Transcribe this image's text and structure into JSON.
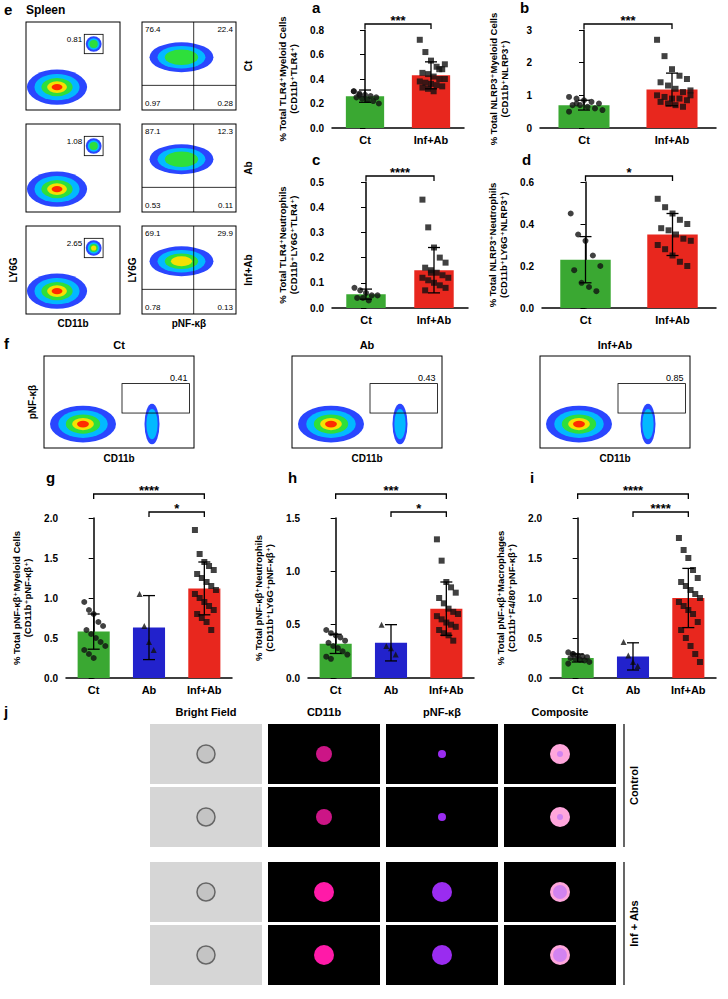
{
  "chart_data": [
    {
      "panel": "a",
      "type": "bar",
      "ylabel": [
        "% Total TLR4⁺Myeloid Cells",
        "(CD11b⁺TLR4⁺)"
      ],
      "categories": [
        "Ct",
        "Inf+Ab"
      ],
      "values": [
        0.26,
        0.43
      ],
      "error": [
        0.05,
        0.11
      ],
      "colors": [
        "#3aa832",
        "#e8271e"
      ],
      "marker": [
        "circle",
        "square"
      ],
      "points": [
        [
          0.3,
          0.28,
          0.27,
          0.26,
          0.25,
          0.25,
          0.24,
          0.23,
          0.22,
          0.2,
          0.3,
          0.27
        ],
        [
          0.72,
          0.62,
          0.55,
          0.5,
          0.48,
          0.45,
          0.44,
          0.42,
          0.4,
          0.4,
          0.38,
          0.37,
          0.36,
          0.35,
          0.34,
          0.33,
          0.32,
          0.3,
          0.48,
          0.52
        ]
      ],
      "ylim": [
        0,
        0.8
      ],
      "yticks": [
        {
          "value": 0,
          "label": "0.0"
        },
        {
          "value": 0.2,
          "label": "0.2"
        },
        {
          "value": 0.4,
          "label": "0.4"
        },
        {
          "value": 0.6,
          "label": "0.6"
        },
        {
          "value": 0.8,
          "label": "0.8"
        }
      ],
      "significance": [
        {
          "groups": [
            "Ct",
            "Inf+Ab"
          ],
          "label": "***"
        }
      ],
      "grid": false
    },
    {
      "panel": "b",
      "type": "bar",
      "ylabel": [
        "% Total NLRP3⁺Myeloid Cells",
        "(CD11b⁺NLRP3⁺)"
      ],
      "categories": [
        "Ct",
        "Inf+Ab"
      ],
      "values": [
        0.7,
        1.18
      ],
      "error": [
        0.15,
        0.5
      ],
      "colors": [
        "#3aa832",
        "#e8271e"
      ],
      "marker": [
        "circle",
        "square"
      ],
      "points": [
        [
          0.95,
          0.9,
          0.85,
          0.8,
          0.75,
          0.7,
          0.7,
          0.65,
          0.6,
          0.55,
          0.5,
          0.75
        ],
        [
          2.7,
          2.2,
          1.8,
          1.6,
          1.5,
          1.4,
          1.3,
          1.2,
          1.1,
          1.0,
          1.0,
          0.95,
          0.9,
          0.9,
          0.85,
          0.8,
          0.75,
          0.7,
          0.65,
          1.15
        ]
      ],
      "ylim": [
        0,
        3
      ],
      "yticks": [
        0,
        1,
        2,
        3
      ],
      "significance": [
        {
          "groups": [
            "Ct",
            "Inf+Ab"
          ],
          "label": "***"
        }
      ],
      "grid": false
    },
    {
      "panel": "c",
      "type": "bar",
      "ylabel": [
        "% Total TLR4⁺Neutrophils",
        "(CD11b⁺LY6G⁺TLR4⁺)"
      ],
      "categories": [
        "Ct",
        "Inf+Ab"
      ],
      "values": [
        0.055,
        0.15
      ],
      "error": [
        0.02,
        0.09
      ],
      "colors": [
        "#3aa832",
        "#e8271e"
      ],
      "marker": [
        "circle",
        "square"
      ],
      "points": [
        [
          0.08,
          0.07,
          0.06,
          0.05,
          0.05,
          0.04,
          0.04,
          0.03
        ],
        [
          0.43,
          0.32,
          0.24,
          0.2,
          0.18,
          0.16,
          0.15,
          0.14,
          0.13,
          0.12,
          0.12,
          0.11,
          0.1,
          0.09,
          0.08,
          0.07,
          0.14
        ]
      ],
      "ylim": [
        0,
        0.5
      ],
      "yticks": [
        {
          "value": 0,
          "label": "0.0"
        },
        {
          "value": 0.1,
          "label": "0.1"
        },
        {
          "value": 0.2,
          "label": "0.2"
        },
        {
          "value": 0.3,
          "label": "0.3"
        },
        {
          "value": 0.4,
          "label": "0.4"
        },
        {
          "value": 0.5,
          "label": "0.5"
        }
      ],
      "significance": [
        {
          "groups": [
            "Ct",
            "Inf+Ab"
          ],
          "label": "****"
        }
      ],
      "grid": false
    },
    {
      "panel": "d",
      "type": "bar",
      "ylabel": [
        "% Total NLRP3⁺Neutrophils",
        "(CD11b⁺LY6G⁺NLRP3⁺)"
      ],
      "categories": [
        "Ct",
        "Inf+Ab"
      ],
      "values": [
        0.23,
        0.35
      ],
      "error": [
        0.11,
        0.1
      ],
      "colors": [
        "#3aa832",
        "#e8271e"
      ],
      "marker": [
        "circle",
        "square"
      ],
      "points": [
        [
          0.45,
          0.35,
          0.32,
          0.25,
          0.2,
          0.18,
          0.12,
          0.1,
          0.08
        ],
        [
          0.52,
          0.48,
          0.45,
          0.42,
          0.4,
          0.38,
          0.37,
          0.35,
          0.33,
          0.32,
          0.3,
          0.28,
          0.25,
          0.22,
          0.2
        ]
      ],
      "ylim": [
        0,
        0.6
      ],
      "yticks": [
        {
          "value": 0,
          "label": "0.0"
        },
        {
          "value": 0.2,
          "label": "0.2"
        },
        {
          "value": 0.4,
          "label": "0.4"
        },
        {
          "value": 0.6,
          "label": "0.6"
        }
      ],
      "significance": [
        {
          "groups": [
            "Ct",
            "Inf+Ab"
          ],
          "label": "*"
        }
      ],
      "grid": false
    },
    {
      "panel": "g",
      "type": "bar",
      "ylabel": [
        "% Total pNF-κβ⁺Myeloid Cells",
        "(CD11b⁺pNF-κβ⁺)"
      ],
      "categories": [
        "Ct",
        "Ab",
        "Inf+Ab"
      ],
      "values": [
        0.58,
        0.63,
        1.12
      ],
      "error": [
        0.22,
        0.4,
        0.33
      ],
      "colors": [
        "#3aa832",
        "#2222cc",
        "#e8271e"
      ],
      "marker": [
        "circle",
        "triangle",
        "square"
      ],
      "points": [
        [
          0.95,
          0.85,
          0.8,
          0.7,
          0.65,
          0.6,
          0.55,
          0.5,
          0.45,
          0.4,
          0.35,
          0.3,
          0.25
        ],
        [
          1.05,
          0.65,
          0.45,
          0.35
        ],
        [
          1.85,
          1.55,
          1.45,
          1.4,
          1.35,
          1.3,
          1.25,
          1.2,
          1.15,
          1.1,
          1.05,
          1.0,
          0.95,
          0.9,
          0.85,
          0.8,
          0.75,
          0.7,
          0.6
        ]
      ],
      "ylim": [
        0,
        2
      ],
      "yticks": [
        {
          "value": 0,
          "label": "0.0"
        },
        {
          "value": 0.5,
          "label": "0.5"
        },
        {
          "value": 1,
          "label": "1.0"
        },
        {
          "value": 1.5,
          "label": "1.5"
        },
        {
          "value": 2,
          "label": "2.0"
        }
      ],
      "significance": [
        {
          "groups": [
            "Ct",
            "Inf+Ab"
          ],
          "label": "****"
        },
        {
          "groups": [
            "Ab",
            "Inf+Ab"
          ],
          "label": "*"
        }
      ],
      "grid": false
    },
    {
      "panel": "h",
      "type": "bar",
      "ylabel": [
        "% Total pNF-κβ⁺Neutrophils",
        "(CD11b⁺LY6G⁺pNF-κβ⁺)"
      ],
      "categories": [
        "Ct",
        "Ab",
        "Inf+Ab"
      ],
      "values": [
        0.32,
        0.33,
        0.65
      ],
      "error": [
        0.09,
        0.17,
        0.25
      ],
      "colors": [
        "#3aa832",
        "#2222cc",
        "#e8271e"
      ],
      "marker": [
        "circle",
        "triangle",
        "square"
      ],
      "points": [
        [
          0.45,
          0.42,
          0.4,
          0.38,
          0.35,
          0.33,
          0.3,
          0.28,
          0.25,
          0.22,
          0.2,
          0.18
        ],
        [
          0.5,
          0.3,
          0.28,
          0.22
        ],
        [
          1.3,
          1.1,
          0.9,
          0.85,
          0.8,
          0.75,
          0.7,
          0.65,
          0.62,
          0.6,
          0.58,
          0.55,
          0.52,
          0.5,
          0.48,
          0.45,
          0.42,
          0.4,
          0.35
        ]
      ],
      "ylim": [
        0,
        1.5
      ],
      "yticks": [
        {
          "value": 0,
          "label": "0.0"
        },
        {
          "value": 0.5,
          "label": "0.5"
        },
        {
          "value": 1,
          "label": "1.0"
        },
        {
          "value": 1.5,
          "label": "1.5"
        }
      ],
      "significance": [
        {
          "groups": [
            "Ct",
            "Inf+Ab"
          ],
          "label": "***"
        },
        {
          "groups": [
            "Ab",
            "Inf+Ab"
          ],
          "label": "*"
        }
      ],
      "grid": false
    },
    {
      "panel": "i",
      "type": "bar",
      "ylabel": [
        "% Total pNF-κβ⁺Macrophages",
        "(CD11b⁺F4/80⁺pNF-κβ⁺)"
      ],
      "categories": [
        "Ct",
        "Ab",
        "Inf+Ab"
      ],
      "values": [
        0.25,
        0.27,
        1.0
      ],
      "error": [
        0.05,
        0.17,
        0.37
      ],
      "colors": [
        "#3aa832",
        "#2222cc",
        "#e8271e"
      ],
      "marker": [
        "circle",
        "triangle",
        "square"
      ],
      "points": [
        [
          0.32,
          0.3,
          0.28,
          0.27,
          0.26,
          0.25,
          0.24,
          0.23,
          0.22,
          0.2,
          0.18,
          0.3
        ],
        [
          0.45,
          0.28,
          0.2,
          0.15
        ],
        [
          1.75,
          1.6,
          1.5,
          1.35,
          1.25,
          1.2,
          1.15,
          1.1,
          1.05,
          1.0,
          0.95,
          0.9,
          0.85,
          0.8,
          0.7,
          0.6,
          0.5,
          0.4,
          0.3,
          0.2
        ]
      ],
      "ylim": [
        0,
        2
      ],
      "yticks": [
        {
          "value": 0,
          "label": "0.0"
        },
        {
          "value": 0.5,
          "label": "0.5"
        },
        {
          "value": 1,
          "label": "1.0"
        },
        {
          "value": 1.5,
          "label": "1.5"
        },
        {
          "value": 2,
          "label": "2.0"
        }
      ],
      "significance": [
        {
          "groups": [
            "Ct",
            "Inf+Ab"
          ],
          "label": "****"
        },
        {
          "groups": [
            "Ab",
            "Inf+Ab"
          ],
          "label": "****"
        }
      ],
      "grid": false
    }
  ],
  "flow_panels": {
    "e": {
      "letter": "e",
      "title": "Spleen",
      "gate_plot_axes": {
        "x": "CD11b",
        "y": "LY6G"
      },
      "quadrant_plot_axes": {
        "x": "pNF-κβ",
        "y": "LY6G"
      },
      "rows": [
        {
          "label": "Ct",
          "gate": 0.81,
          "quadrants": {
            "upper_left": 76.4,
            "upper_right": 22.4,
            "lower_left": 0.97,
            "lower_right": 0.28
          }
        },
        {
          "label": "Ab",
          "gate": 1.08,
          "quadrants": {
            "upper_left": 87.1,
            "upper_right": 12.3,
            "lower_left": 0.53,
            "lower_right": 0.11
          }
        },
        {
          "label": "Inf+Ab",
          "gate": 2.65,
          "quadrants": {
            "upper_left": 69.1,
            "upper_right": 29.9,
            "lower_left": 0.78,
            "lower_right": 0.13
          }
        }
      ]
    },
    "f": {
      "letter": "f",
      "axes": {
        "x": "CD11b",
        "y": "pNF-κβ"
      },
      "plots": [
        {
          "label": "Ct",
          "gate": 0.41
        },
        {
          "label": "Ab",
          "gate": 0.43
        },
        {
          "label": "Inf+Ab",
          "gate": 0.85
        }
      ]
    }
  },
  "image_panel": {
    "letter": "j",
    "columns": [
      "Bright Field",
      "CD11b",
      "pNF-κβ",
      "Composite"
    ],
    "groups": [
      {
        "label": "Control",
        "cells": 2
      },
      {
        "label": "Inf + Abs",
        "cells": 2
      }
    ]
  }
}
